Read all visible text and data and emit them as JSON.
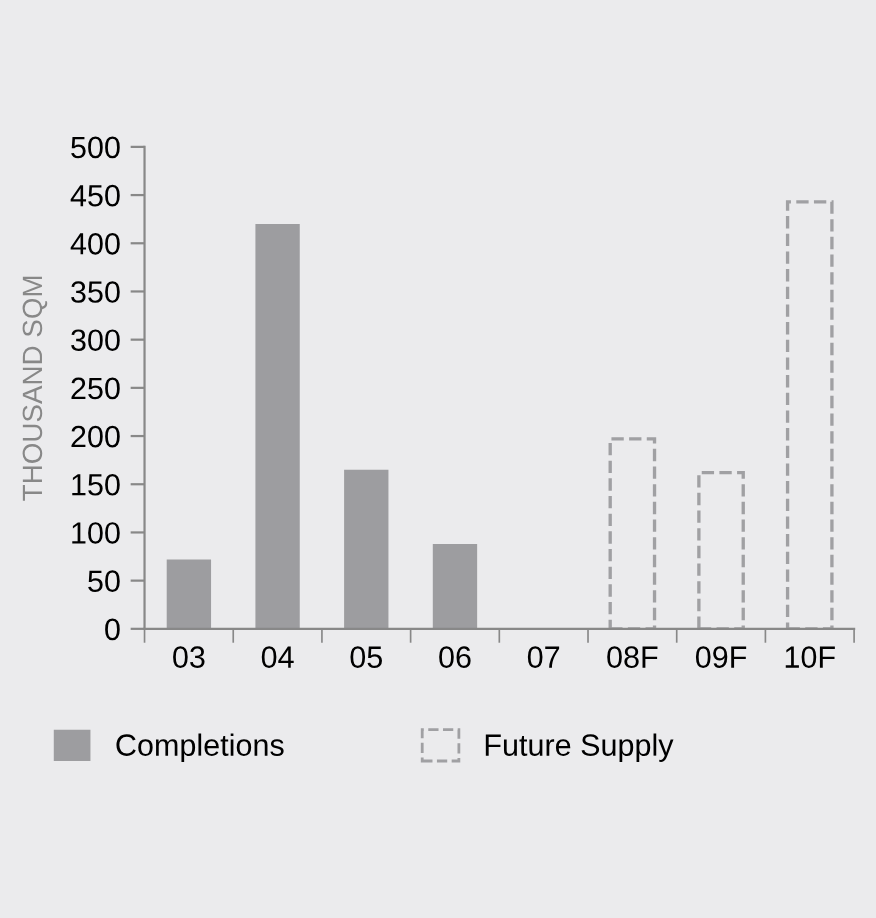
{
  "chart_data": {
    "type": "bar",
    "ylabel": "THOUSAND SQM",
    "categories": [
      "03",
      "04",
      "05",
      "06",
      "07",
      "08F",
      "09F",
      "10F"
    ],
    "series": [
      {
        "name": "Completions",
        "color": "#9d9da0",
        "values": [
          72,
          420,
          165,
          88,
          null,
          null,
          null,
          null
        ]
      },
      {
        "name": "Future Supply",
        "color": "#a0a0a3",
        "line_style": "dashed",
        "values": [
          null,
          null,
          null,
          null,
          null,
          197,
          162,
          443
        ]
      }
    ],
    "ylim": [
      0,
      500
    ],
    "yticks": [
      0,
      50,
      100,
      150,
      200,
      250,
      300,
      350,
      400,
      450,
      500
    ],
    "grid": false,
    "legend": "bottom"
  }
}
